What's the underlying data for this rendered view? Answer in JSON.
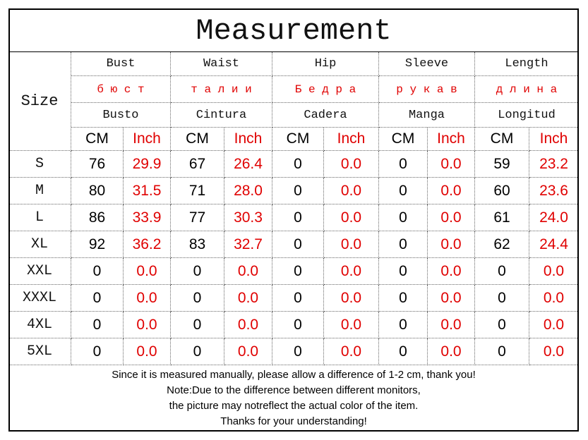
{
  "title": "Measurement",
  "size_label": "Size",
  "columns": [
    {
      "en": "Bust",
      "ru": "б ю с т",
      "es": "Busto"
    },
    {
      "en": "Waist",
      "ru": "т а л и и",
      "es": "Cintura"
    },
    {
      "en": "Hip",
      "ru": "Б е д р а",
      "es": "Cadera"
    },
    {
      "en": "Sleeve",
      "ru": "р у к а в",
      "es": "Manga"
    },
    {
      "en": "Length",
      "ru": "д л и н а",
      "es": "Longitud"
    }
  ],
  "units": [
    "CM",
    "Inch"
  ],
  "rows": [
    [
      "S",
      "76",
      "29.9",
      "67",
      "26.4",
      "0",
      "0.0",
      "0",
      "0.0",
      "59",
      "23.2"
    ],
    [
      "M",
      "80",
      "31.5",
      "71",
      "28.0",
      "0",
      "0.0",
      "0",
      "0.0",
      "60",
      "23.6"
    ],
    [
      "L",
      "86",
      "33.9",
      "77",
      "30.3",
      "0",
      "0.0",
      "0",
      "0.0",
      "61",
      "24.0"
    ],
    [
      "XL",
      "92",
      "36.2",
      "83",
      "32.7",
      "0",
      "0.0",
      "0",
      "0.0",
      "62",
      "24.4"
    ],
    [
      "XXL",
      "0",
      "0.0",
      "0",
      "0.0",
      "0",
      "0.0",
      "0",
      "0.0",
      "0",
      "0.0"
    ],
    [
      "XXXL",
      "0",
      "0.0",
      "0",
      "0.0",
      "0",
      "0.0",
      "0",
      "0.0",
      "0",
      "0.0"
    ],
    [
      "4XL",
      "0",
      "0.0",
      "0",
      "0.0",
      "0",
      "0.0",
      "0",
      "0.0",
      "0",
      "0.0"
    ],
    [
      "5XL",
      "0",
      "0.0",
      "0",
      "0.0",
      "0",
      "0.0",
      "0",
      "0.0",
      "0",
      "0.0"
    ]
  ],
  "notes": [
    "Since it is measured manually, please allow a difference of 1-2 cm, thank you!",
    "Note:Due to the difference between different monitors,",
    "the picture may notreflect the actual color of the item.",
    "Thanks for your understanding!"
  ]
}
